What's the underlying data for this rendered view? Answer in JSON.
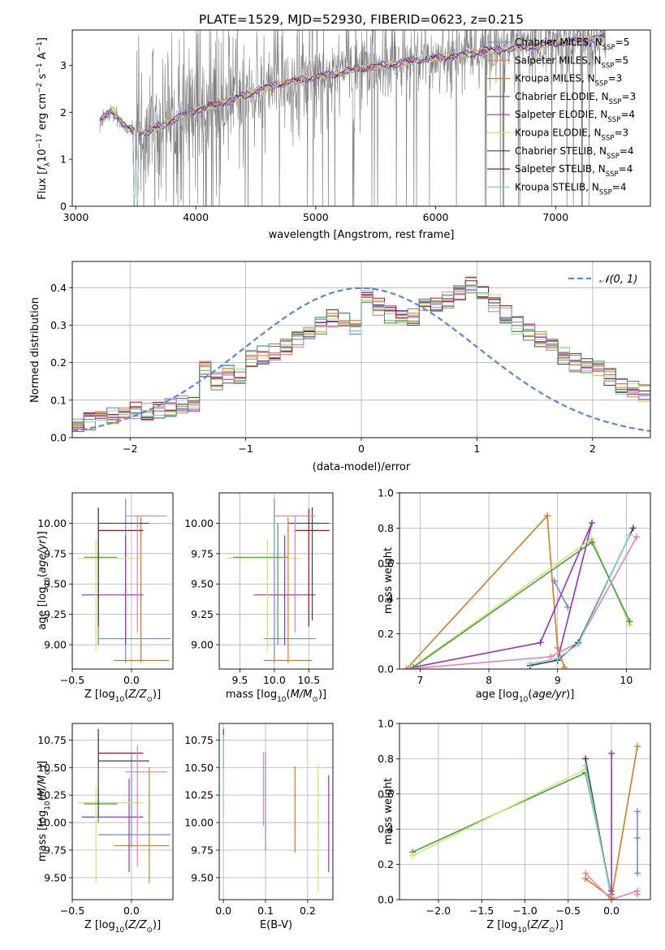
{
  "colors": {
    "Chabrier MILES": "#6a8fd8",
    "Salpeter MILES": "#e87a3a",
    "Kroupa MILES": "#d87a20",
    "Chabrier ELODIE": "#6f6f6f",
    "Salpeter ELODIE": "#9b30c0",
    "Kroupa ELODIE": "#c8ec60",
    "Chabrier STELIB": "#404040",
    "Salpeter STELIB": "#b01010",
    "Kroupa STELIB": "#80d0e0",
    "green": "#4a9a5a",
    "pink": "#e880b0",
    "normal": "#5a88d8"
  },
  "legend_entries": [
    {
      "pre": "Chabrier MILES, N",
      "sub": "SSP",
      "post": "=5",
      "series": "Chabrier MILES"
    },
    {
      "pre": "Salpeter MILES, N",
      "sub": "SSP",
      "post": "=5",
      "series": "Salpeter MILES"
    },
    {
      "pre": "Kroupa MILES, N",
      "sub": "SSP",
      "post": "=3",
      "series": "Kroupa MILES"
    },
    {
      "pre": "Chabrier ELODIE, N",
      "sub": "SSP",
      "post": "=3",
      "series": "Chabrier ELODIE"
    },
    {
      "pre": "Salpeter ELODIE, N",
      "sub": "SSP",
      "post": "=4",
      "series": "Salpeter ELODIE"
    },
    {
      "pre": "Kroupa ELODIE, N",
      "sub": "SSP",
      "post": "=3",
      "series": "Kroupa ELODIE"
    },
    {
      "pre": "Chabrier STELIB, N",
      "sub": "SSP",
      "post": "=4",
      "series": "Chabrier STELIB"
    },
    {
      "pre": "Salpeter STELIB, N",
      "sub": "SSP",
      "post": "=4",
      "series": "Salpeter STELIB"
    },
    {
      "pre": "Kroupa STELIB, N",
      "sub": "SSP",
      "post": "=4",
      "series": "Kroupa STELIB"
    }
  ],
  "chart_data": [
    {
      "type": "line",
      "title": "PLATE=1529, MJD=52930, FIBERID=0623, z=0.215",
      "xlabel": "wavelength [Angstrom, rest frame]",
      "ylabel_parts": [
        "Flux [",
        "f",
        "λ",
        "10",
        "−17",
        " erg cm",
        "−2",
        " s",
        "−1",
        " A",
        "−1",
        "]"
      ],
      "xlim": [
        2970,
        7790
      ],
      "ylim": [
        0,
        3.75
      ],
      "xticks": [
        3000,
        4000,
        5000,
        6000,
        7000
      ],
      "yticks": [
        0,
        1,
        2,
        3
      ],
      "data_range": [
        3200,
        7420
      ],
      "continuum": [
        [
          3200,
          1.8
        ],
        [
          3300,
          2.05
        ],
        [
          3400,
          1.7
        ],
        [
          3500,
          1.58
        ],
        [
          3600,
          1.58
        ],
        [
          3700,
          1.7
        ],
        [
          3800,
          1.82
        ],
        [
          3900,
          1.95
        ],
        [
          4000,
          2.05
        ],
        [
          4200,
          2.18
        ],
        [
          4400,
          2.35
        ],
        [
          4600,
          2.55
        ],
        [
          4800,
          2.65
        ],
        [
          5000,
          2.75
        ],
        [
          5200,
          2.82
        ],
        [
          5400,
          2.95
        ],
        [
          5600,
          3.0
        ],
        [
          5800,
          3.1
        ],
        [
          6000,
          3.15
        ],
        [
          6200,
          3.22
        ],
        [
          6400,
          3.3
        ],
        [
          6600,
          3.35
        ],
        [
          6800,
          3.4
        ],
        [
          7000,
          3.48
        ],
        [
          7200,
          3.52
        ],
        [
          7420,
          3.6
        ]
      ],
      "grid": false
    },
    {
      "type": "step",
      "xlabel": "(data-model)/error",
      "ylabel": "Normed distribution",
      "xlim": [
        -2.5,
        2.5
      ],
      "ylim": [
        0,
        0.47
      ],
      "xticks": [
        -2,
        -1,
        0,
        1,
        2
      ],
      "yticks": [
        0,
        0.1,
        0.2,
        0.3,
        0.4
      ],
      "bin_width": 0.1,
      "base_heights": [
        0.04,
        0.045,
        0.05,
        0.055,
        0.06,
        0.07,
        0.07,
        0.075,
        0.08,
        0.09,
        0.095,
        0.18,
        0.15,
        0.17,
        0.16,
        0.21,
        0.22,
        0.23,
        0.24,
        0.26,
        0.28,
        0.3,
        0.32,
        0.31,
        0.3,
        0.38,
        0.35,
        0.33,
        0.32,
        0.32,
        0.35,
        0.36,
        0.37,
        0.39,
        0.41,
        0.38,
        0.36,
        0.33,
        0.3,
        0.28,
        0.26,
        0.24,
        0.22,
        0.2,
        0.19,
        0.18,
        0.16,
        0.14,
        0.13,
        0.12,
        0.11,
        0.1,
        0.09,
        0.08,
        0.075,
        0.07,
        0.06,
        0.055,
        0.05,
        0.045
      ],
      "legend": "𝒩(0, 1)",
      "legend_position": "top-right",
      "grid": true
    },
    {
      "type": "errorbar",
      "xlabel": "Z [log10(Z/Z⊙)]",
      "ylabel": "age  [log10(age/yr)]",
      "xlim": [
        -0.5,
        0.35
      ],
      "ylim": [
        8.8,
        10.25
      ],
      "xticks": [
        -0.5,
        0.0
      ],
      "yticks": [
        9.0,
        9.25,
        9.5,
        9.75,
        10.0
      ],
      "points": [
        {
          "c": "Chabrier MILES",
          "x": -0.05,
          "xe": [
            -0.28,
            0.33
          ],
          "y": 9.05,
          "ye": [
            8.85,
            10.2
          ]
        },
        {
          "c": "Kroupa MILES",
          "x": 0.08,
          "xe": [
            -0.15,
            0.32
          ],
          "y": 8.87,
          "ye": [
            8.85,
            10.05
          ]
        },
        {
          "c": "Salpeter ELODIE",
          "x": -0.05,
          "xe": [
            -0.42,
            0.1
          ],
          "y": 9.41,
          "ye": [
            9.0,
            9.9
          ]
        },
        {
          "c": "Kroupa ELODIE",
          "x": -0.3,
          "xe": [
            -0.45,
            0.1
          ],
          "y": 9.71,
          "ye": [
            8.95,
            9.87
          ]
        },
        {
          "c": "green",
          "x": -0.28,
          "xe": [
            -0.4,
            -0.12
          ],
          "y": 9.72,
          "ye": [
            9.0,
            10.0
          ]
        },
        {
          "c": "Salpeter STELIB",
          "x": -0.28,
          "xe": [
            -0.28,
            0.1
          ],
          "y": 9.94,
          "ye": [
            9.15,
            10.12
          ]
        },
        {
          "c": "Chabrier STELIB",
          "x": -0.28,
          "xe": [
            -0.28,
            0.15
          ],
          "y": 10.0,
          "ye": [
            9.2,
            10.13
          ]
        },
        {
          "c": "pink",
          "x": 0.05,
          "xe": [
            -0.05,
            0.3
          ],
          "y": 10.06,
          "ye": [
            9.1,
            10.06
          ]
        }
      ],
      "grid": true
    },
    {
      "type": "errorbar",
      "xlabel": "mass [log10(M/M⊙)]",
      "xlim": [
        9.2,
        10.85
      ],
      "ylim": [
        8.8,
        10.25
      ],
      "xticks": [
        9.5,
        10.0,
        10.5
      ],
      "yticks": [
        9.0,
        9.25,
        9.5,
        9.75,
        10.0
      ],
      "points": [
        {
          "c": "Chabrier MILES",
          "x": 10.0,
          "xe": [
            9.85,
            10.6
          ],
          "y": 9.05,
          "ye": [
            8.85,
            10.2
          ]
        },
        {
          "c": "Kroupa MILES",
          "x": 10.2,
          "xe": [
            9.85,
            10.55
          ],
          "y": 8.87,
          "ye": [
            8.85,
            10.05
          ]
        },
        {
          "c": "Salpeter ELODIE",
          "x": 10.15,
          "xe": [
            9.7,
            10.6
          ],
          "y": 9.41,
          "ye": [
            9.0,
            9.9
          ]
        },
        {
          "c": "Kroupa ELODIE",
          "x": 9.9,
          "xe": [
            9.3,
            10.4
          ],
          "y": 9.71,
          "ye": [
            8.95,
            9.87
          ]
        },
        {
          "c": "green",
          "x": 10.05,
          "xe": [
            9.4,
            10.2
          ],
          "y": 9.72,
          "ye": [
            9.0,
            10.0
          ]
        },
        {
          "c": "Salpeter STELIB",
          "x": 10.5,
          "xe": [
            10.3,
            10.8
          ],
          "y": 9.94,
          "ye": [
            9.15,
            10.12
          ]
        },
        {
          "c": "Chabrier STELIB",
          "x": 10.55,
          "xe": [
            10.2,
            10.8
          ],
          "y": 10.0,
          "ye": [
            9.2,
            10.13
          ]
        },
        {
          "c": "pink",
          "x": 10.3,
          "xe": [
            10.0,
            10.6
          ],
          "y": 10.06,
          "ye": [
            9.1,
            10.06
          ]
        }
      ],
      "grid": true
    },
    {
      "type": "line",
      "xlabel": "age  [log10(age/yr)]",
      "ylabel": "mass weight",
      "xlim": [
        6.7,
        10.35
      ],
      "ylim": [
        0,
        1
      ],
      "xticks": [
        7,
        8,
        9,
        10
      ],
      "yticks": [
        0.0,
        0.2,
        0.4,
        0.6,
        0.8,
        1.0
      ],
      "series": [
        {
          "c": "Kroupa MILES",
          "points": [
            [
              6.8,
              0.0
            ],
            [
              8.85,
              0.87
            ],
            [
              9.0,
              0.12
            ],
            [
              9.1,
              0.01
            ]
          ]
        },
        {
          "c": "Chabrier MILES",
          "points": [
            [
              8.95,
              0.5
            ],
            [
              9.15,
              0.35
            ]
          ]
        },
        {
          "c": "Salpeter ELODIE",
          "points": [
            [
              6.9,
              0.01
            ],
            [
              8.75,
              0.15
            ],
            [
              9.5,
              0.83
            ],
            [
              9.0,
              0.05
            ]
          ]
        },
        {
          "c": "Kroupa ELODIE",
          "points": [
            [
              6.85,
              0.0
            ],
            [
              9.5,
              0.74
            ],
            [
              10.05,
              0.25
            ]
          ]
        },
        {
          "c": "green",
          "points": [
            [
              6.9,
              0.01
            ],
            [
              9.5,
              0.72
            ],
            [
              10.05,
              0.27
            ]
          ]
        },
        {
          "c": "pink",
          "points": [
            [
              6.8,
              0.0
            ],
            [
              8.9,
              0.07
            ],
            [
              9.3,
              0.15
            ],
            [
              10.15,
              0.75
            ]
          ]
        },
        {
          "c": "Chabrier STELIB",
          "points": [
            [
              8.6,
              0.02
            ],
            [
              9.0,
              0.05
            ],
            [
              9.3,
              0.15
            ],
            [
              10.1,
              0.8
            ]
          ]
        },
        {
          "c": "Kroupa STELIB",
          "points": [
            [
              8.6,
              0.03
            ],
            [
              9.0,
              0.06
            ],
            [
              9.3,
              0.14
            ],
            [
              10.05,
              0.76
            ]
          ]
        }
      ],
      "grid": true
    },
    {
      "type": "errorbar",
      "xlabel": "Z [log10(Z/Z⊙)]",
      "ylabel": "mass [log10(M/M⊙)]",
      "xlim": [
        -0.5,
        0.35
      ],
      "ylim": [
        9.3,
        10.9
      ],
      "xticks": [
        -0.5,
        0.0
      ],
      "yticks": [
        9.5,
        9.75,
        10.0,
        10.25,
        10.5,
        10.75
      ],
      "points": [
        {
          "c": "Chabrier MILES",
          "x": 0.0,
          "xe": [
            -0.28,
            0.33
          ],
          "y": 9.89,
          "ye": [
            9.78,
            10.63
          ]
        },
        {
          "c": "Kroupa MILES",
          "x": 0.15,
          "xe": [
            -0.15,
            0.32
          ],
          "y": 9.79,
          "ye": [
            9.45,
            10.5
          ]
        },
        {
          "c": "Salpeter ELODIE",
          "x": -0.02,
          "xe": [
            -0.42,
            0.1
          ],
          "y": 10.05,
          "ye": [
            9.55,
            10.4
          ]
        },
        {
          "c": "Kroupa ELODIE",
          "x": -0.3,
          "xe": [
            -0.45,
            0.1
          ],
          "y": 10.18,
          "ye": [
            9.45,
            10.33
          ]
        },
        {
          "c": "green",
          "x": -0.28,
          "xe": [
            -0.4,
            -0.12
          ],
          "y": 10.17,
          "ye": [
            10.0,
            10.3
          ]
        },
        {
          "c": "Salpeter STELIB",
          "x": -0.28,
          "xe": [
            -0.28,
            0.1
          ],
          "y": 10.63,
          "ye": [
            10.5,
            10.85
          ]
        },
        {
          "c": "Chabrier STELIB",
          "x": -0.28,
          "xe": [
            -0.28,
            0.15
          ],
          "y": 10.56,
          "ye": [
            10.05,
            10.8
          ]
        },
        {
          "c": "pink",
          "x": 0.05,
          "xe": [
            -0.05,
            0.3
          ],
          "y": 10.46,
          "ye": [
            9.6,
            10.7
          ]
        }
      ],
      "grid": true
    },
    {
      "type": "errorbar",
      "xlabel": "E(B-V)",
      "xlim": [
        -0.01,
        0.26
      ],
      "ylim": [
        9.3,
        10.9
      ],
      "xticks": [
        0.0,
        0.1,
        0.2
      ],
      "yticks": [
        9.5,
        9.75,
        10.0,
        10.25,
        10.5,
        10.75
      ],
      "points": [
        {
          "c": "Salpeter STELIB",
          "x": 0.0,
          "xe": [
            0.0,
            0.0
          ],
          "y": 10.63,
          "ye": [
            10.5,
            10.85
          ]
        },
        {
          "c": "Kroupa STELIB",
          "x": 0.0,
          "xe": [
            0.0,
            0.0
          ],
          "y": 10.4,
          "ye": [
            10.05,
            10.8
          ]
        },
        {
          "c": "pink",
          "x": 0.095,
          "xe": [
            0.095,
            0.095
          ],
          "y": 10.3,
          "ye": [
            9.97,
            10.64
          ]
        },
        {
          "c": "Chabrier MILES",
          "x": 0.1,
          "xe": [
            0.1,
            0.1
          ],
          "y": 10.2,
          "ye": [
            9.75,
            10.64
          ]
        },
        {
          "c": "Kroupa MILES",
          "x": 0.17,
          "xe": [
            0.17,
            0.17
          ],
          "y": 10.1,
          "ye": [
            9.73,
            10.51
          ]
        },
        {
          "c": "Kroupa ELODIE",
          "x": 0.225,
          "xe": [
            0.225,
            0.225
          ],
          "y": 9.9,
          "ye": [
            9.37,
            10.53
          ]
        },
        {
          "c": "Salpeter ELODIE",
          "x": 0.25,
          "xe": [
            0.25,
            0.25
          ],
          "y": 9.95,
          "ye": [
            9.55,
            10.43
          ]
        }
      ],
      "grid": true
    },
    {
      "type": "line",
      "xlabel": "Z [log10(Z/Z⊙)]",
      "ylabel": "mass weight",
      "xlim": [
        -2.45,
        0.45
      ],
      "ylim": [
        0,
        1
      ],
      "xticks": [
        -2.0,
        -1.5,
        -1.0,
        -0.5,
        0.0
      ],
      "yticks": [
        0.0,
        0.2,
        0.4,
        0.6,
        0.8,
        1.0
      ],
      "series": [
        {
          "c": "green",
          "points": [
            [
              -2.3,
              0.27
            ],
            [
              -0.3,
              0.72
            ],
            [
              0.0,
              0.03
            ]
          ]
        },
        {
          "c": "Kroupa ELODIE",
          "points": [
            [
              -2.3,
              0.25
            ],
            [
              -0.3,
              0.74
            ],
            [
              0.0,
              0.02
            ]
          ]
        },
        {
          "c": "Chabrier STELIB",
          "points": [
            [
              -0.3,
              0.8
            ],
            [
              0.0,
              0.0
            ]
          ]
        },
        {
          "c": "Kroupa STELIB",
          "points": [
            [
              -0.3,
              0.76
            ],
            [
              0.0,
              0.0
            ]
          ]
        },
        {
          "c": "Salpeter ELODIE",
          "points": [
            [
              0.0,
              0.83
            ],
            [
              0.0,
              0.05
            ]
          ]
        },
        {
          "c": "Kroupa MILES",
          "points": [
            [
              -0.3,
              0.12
            ],
            [
              0.0,
              0.01
            ],
            [
              0.3,
              0.87
            ]
          ]
        },
        {
          "c": "Chabrier MILES",
          "points": [
            [
              0.3,
              0.5
            ],
            [
              0.3,
              0.35
            ],
            [
              0.3,
              0.15
            ]
          ]
        },
        {
          "c": "pink",
          "points": [
            [
              -0.3,
              0.15
            ],
            [
              0.0,
              0.0
            ],
            [
              0.3,
              0.05
            ],
            [
              0.3,
              0.03
            ]
          ]
        }
      ],
      "grid": true
    }
  ]
}
